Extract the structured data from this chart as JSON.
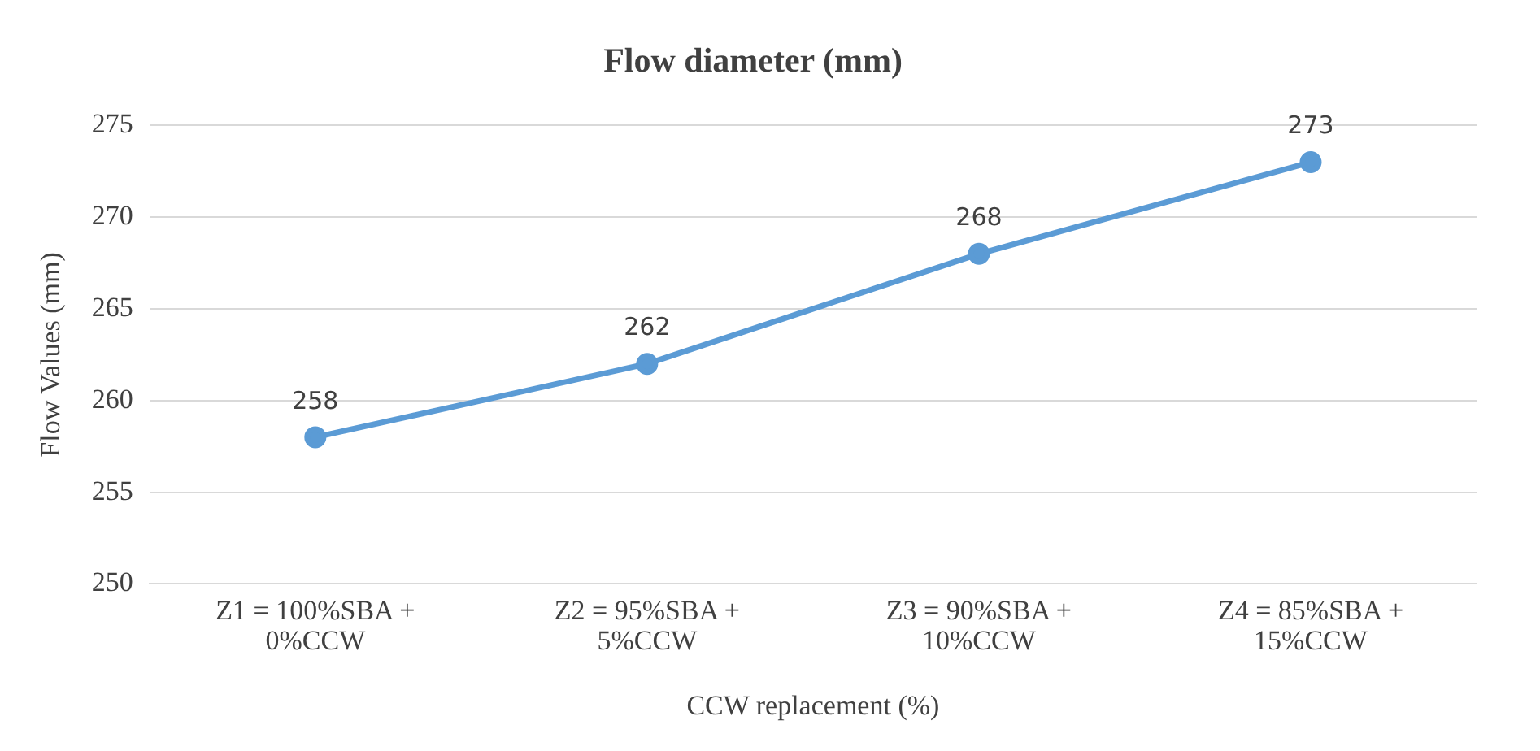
{
  "chart_data": {
    "type": "line",
    "title": "Flow diameter (mm)",
    "xlabel": "CCW replacement (%)",
    "ylabel": "Flow Values (mm)",
    "categories": [
      "Z1 = 100%SBA + 0%CCW",
      "Z2 = 95%SBA + 5%CCW",
      "Z3 = 90%SBA + 10%CCW",
      "Z4 = 85%SBA + 15%CCW"
    ],
    "series": [
      {
        "color": "#5b9bd5",
        "values": [
          258,
          262,
          268,
          273
        ]
      }
    ],
    "ylim": [
      250,
      275
    ],
    "yticks": [
      250,
      255,
      260,
      265,
      270,
      275
    ],
    "grid": "y",
    "legend": false,
    "marker": "circle",
    "line_style": "solid",
    "data_labels": true
  }
}
